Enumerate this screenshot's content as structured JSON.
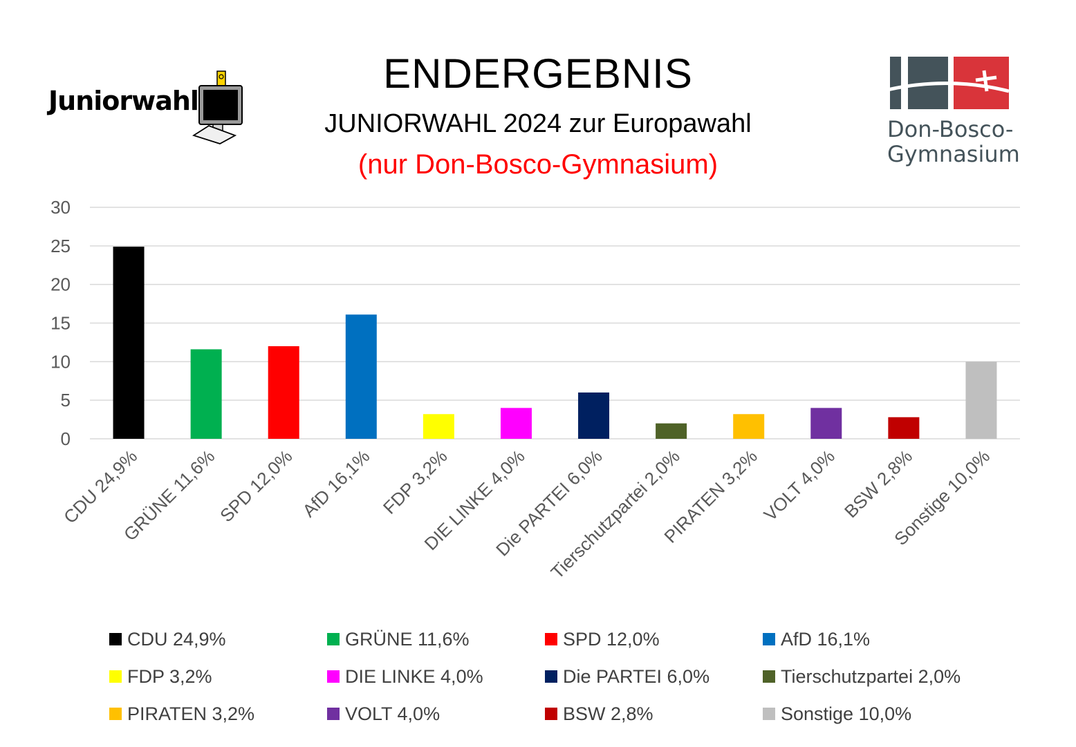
{
  "header": {
    "title": "ENDERGEBNIS",
    "subtitle": "JUNIORWAHL 2024 zur Europawahl",
    "subtitle2": "(nur Don-Bosco-Gymnasium)"
  },
  "logos": {
    "left_wordmark": "Juniorwahl",
    "right_line1": "Don-Bosco-",
    "right_line2": "Gymnasium"
  },
  "colors": {
    "grid": "#d9d9d9",
    "axis_text": "#595959",
    "subtitle_accent": "#ff0000",
    "school_dark": "#44535a",
    "school_red": "#d9343a"
  },
  "chart_data": {
    "type": "bar",
    "title": "",
    "xlabel": "",
    "ylabel": "",
    "ylim": [
      0,
      30
    ],
    "yticks": [
      0,
      5,
      10,
      15,
      20,
      25,
      30
    ],
    "grid": true,
    "legend_position": "bottom",
    "categories": [
      "CDU 24,9%",
      "GRÜNE 11,6%",
      "SPD 12,0%",
      "AfD 16,1%",
      "FDP 3,2%",
      "DIE LINKE 4,0%",
      "Die PARTEI 6,0%",
      "Tierschutzpartei 2,0%",
      "PIRATEN 3,2%",
      "VOLT 4,0%",
      "BSW 2,8%",
      "Sonstige 10,0%"
    ],
    "values": [
      24.9,
      11.6,
      12.0,
      16.1,
      3.2,
      4.0,
      6.0,
      2.0,
      3.2,
      4.0,
      2.8,
      10.0
    ],
    "colors": [
      "#000000",
      "#00b050",
      "#ff0000",
      "#0070c0",
      "#ffff00",
      "#ff00ff",
      "#002060",
      "#4f6228",
      "#ffc000",
      "#7030a0",
      "#c00000",
      "#bfbfbf"
    ]
  }
}
